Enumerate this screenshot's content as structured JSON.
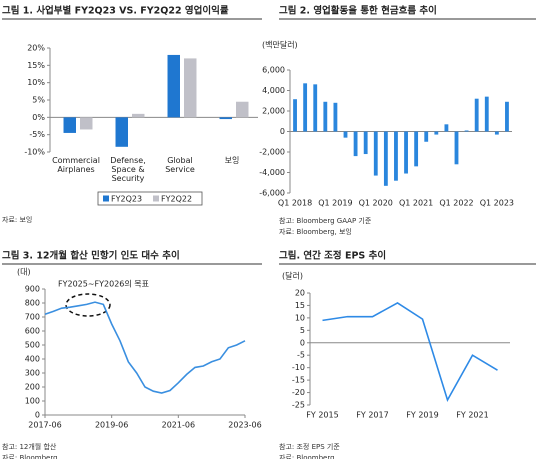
{
  "chart_data": [
    {
      "type": "bar",
      "title": "그림 1. 사업부별 FY2Q23 VS. FY2Q22 영업이익률",
      "categories": [
        "Commercial Airplanes",
        "Defense, Space & Security",
        "Global Service",
        "보잉"
      ],
      "series": [
        {
          "name": "FY2Q23",
          "color": "#1f77d0",
          "values": [
            -4.5,
            -8.5,
            18,
            -0.5
          ]
        },
        {
          "name": "FY2Q22",
          "color": "#c0c0c8",
          "values": [
            -3.5,
            1,
            17,
            4.5
          ]
        }
      ],
      "ylim": [
        -10,
        20
      ],
      "yticks": [
        {
          "value": -10,
          "label": "-10%"
        },
        {
          "value": -5,
          "label": "-5%"
        },
        {
          "value": 0,
          "label": "0%"
        },
        {
          "value": 5,
          "label": "5%"
        },
        {
          "value": 10,
          "label": "10%"
        },
        {
          "value": 15,
          "label": "15%"
        },
        {
          "value": 20,
          "label": "20%"
        }
      ],
      "legend": "bottom",
      "notes": [
        "자료: 보잉"
      ]
    },
    {
      "type": "bar",
      "title": "그림 2. 영업활동을 통한 현금흐름 추이",
      "unit": "(백만달러)",
      "categories": [
        "Q1 2018",
        null,
        null,
        null,
        "Q1 2019",
        null,
        null,
        null,
        "Q1 2020",
        null,
        null,
        null,
        "Q1 2021",
        null,
        null,
        null,
        "Q1 2022",
        null,
        null,
        null,
        "Q1 2023",
        null
      ],
      "series": [
        {
          "name": "영업활동 현금흐름",
          "color": "#2a86dd",
          "values": [
            3150,
            4700,
            4600,
            2900,
            2800,
            -600,
            -2400,
            -2200,
            -4300,
            -5300,
            -4800,
            -4100,
            -3400,
            -1000,
            -300,
            700,
            -3200,
            100,
            3200,
            3400,
            -300,
            2900
          ]
        }
      ],
      "ylim": [
        -6000,
        6000
      ],
      "yticks": [
        {
          "value": -6000,
          "label": "-6,000"
        },
        {
          "value": -4000,
          "label": "-4,000"
        },
        {
          "value": -2000,
          "label": "-2,000"
        },
        0,
        {
          "value": 2000,
          "label": "2,000"
        },
        {
          "value": 4000,
          "label": "4,000"
        },
        {
          "value": 6000,
          "label": "6,000"
        }
      ],
      "notes": [
        "참고: Bloomberg GAAP 기준",
        "자료: Bloomberg, 보잉"
      ]
    },
    {
      "type": "line",
      "title": "그림 3. 12개월 합산 민항기 인도 대수 추이",
      "unit": "(대)",
      "x": [
        "2017-06",
        "2017-09",
        "2017-12",
        "2018-03",
        "2018-06",
        "2018-09",
        "2018-12",
        "2019-03",
        "2019-06",
        "2019-09",
        "2019-12",
        "2020-03",
        "2020-06",
        "2020-09",
        "2020-12",
        "2021-03",
        "2021-06",
        "2021-09",
        "2021-12",
        "2022-03",
        "2022-06",
        "2022-09",
        "2022-12",
        "2023-03",
        "2023-06"
      ],
      "series": [
        {
          "name": "인도 대수",
          "color": "#3a8fe0",
          "values": [
            720,
            740,
            763,
            770,
            780,
            790,
            806,
            790,
            650,
            530,
            380,
            300,
            200,
            170,
            157,
            175,
            230,
            290,
            340,
            350,
            380,
            400,
            480,
            500,
            530
          ]
        }
      ],
      "xticks": [
        "2017-06",
        "2019-06",
        "2021-06",
        "2023-06"
      ],
      "ylim": [
        0,
        900
      ],
      "yticks": [
        0,
        100,
        200,
        300,
        400,
        500,
        600,
        700,
        800,
        900
      ],
      "annotation": "FY2025~FY2026의 목표",
      "notes": [
        "참고: 12개월 합산",
        "자료: Bloomberg"
      ]
    },
    {
      "type": "line",
      "title": "그림. 연간 조정 EPS 추이",
      "unit": "(달러)",
      "categories": [
        "FY 2015",
        null,
        "FY 2017",
        null,
        "FY 2019",
        null,
        "FY 2021",
        null
      ],
      "series": [
        {
          "name": "조정 EPS",
          "color": "#2e8ae6",
          "values": [
            9,
            10.5,
            10.5,
            16,
            9.5,
            -23,
            -5,
            -11
          ]
        }
      ],
      "ylim": [
        -25,
        20
      ],
      "yticks": [
        -25,
        -20,
        -15,
        -10,
        -5,
        0,
        5,
        10,
        15,
        20
      ],
      "notes": [
        "참고: 조정 EPS 기준",
        "자료: Bloomberg"
      ]
    }
  ]
}
